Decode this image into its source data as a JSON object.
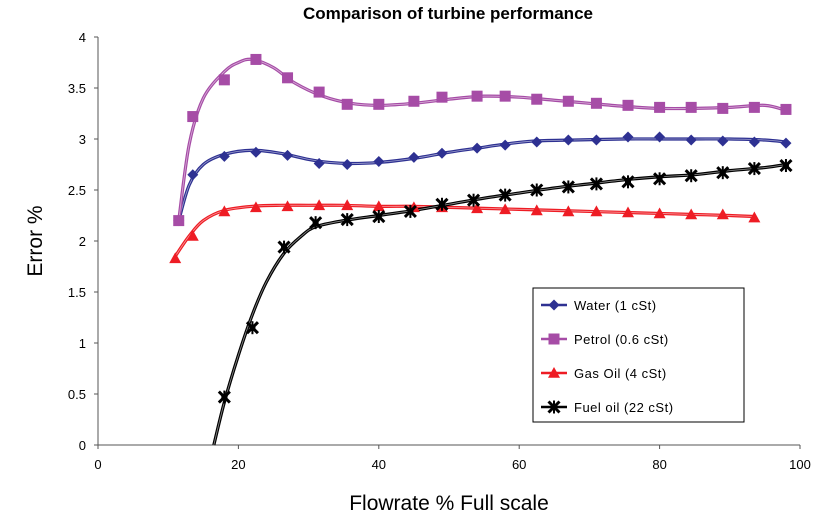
{
  "chart_data": {
    "type": "line",
    "title": "Comparison of turbine performance",
    "xlabel": "Flowrate  % Full scale",
    "ylabel": "Error  %",
    "xlim": [
      0,
      100
    ],
    "ylim": [
      0,
      4
    ],
    "x_ticks": [
      "0",
      "20",
      "40",
      "60",
      "80",
      "100"
    ],
    "y_ticks": [
      "0",
      "0.5",
      "1",
      "1.5",
      "2",
      "2.5",
      "3",
      "3.5",
      "4"
    ],
    "grid": false,
    "legend_position": "bottom-right",
    "series": [
      {
        "name": "Water   (1 cSt)",
        "color": "#2e3192",
        "marker": "diamond",
        "points": [
          [
            11.5,
            2.2
          ],
          [
            13.5,
            2.65
          ],
          [
            18,
            2.83
          ],
          [
            22.5,
            2.87
          ],
          [
            27,
            2.84
          ],
          [
            31.5,
            2.76
          ],
          [
            35.5,
            2.75
          ],
          [
            40,
            2.78
          ],
          [
            45,
            2.82
          ],
          [
            49,
            2.86
          ],
          [
            54,
            2.91
          ],
          [
            58,
            2.94
          ],
          [
            62.5,
            2.97
          ],
          [
            67,
            2.99
          ],
          [
            71,
            2.99
          ],
          [
            75.5,
            3.02
          ],
          [
            80,
            3.02
          ],
          [
            84.5,
            2.99
          ],
          [
            89,
            2.98
          ],
          [
            93.5,
            2.97
          ],
          [
            98,
            2.96
          ]
        ]
      },
      {
        "name": "Petrol   (0.6 cSt)",
        "color": "#a64ca6",
        "marker": "square",
        "points": [
          [
            11.5,
            2.2
          ],
          [
            13.5,
            3.22
          ],
          [
            18,
            3.58
          ],
          [
            22.5,
            3.78
          ],
          [
            27,
            3.6
          ],
          [
            31.5,
            3.46
          ],
          [
            35.5,
            3.34
          ],
          [
            40,
            3.34
          ],
          [
            45,
            3.37
          ],
          [
            49,
            3.41
          ],
          [
            54,
            3.42
          ],
          [
            58,
            3.42
          ],
          [
            62.5,
            3.39
          ],
          [
            67,
            3.37
          ],
          [
            71,
            3.35
          ],
          [
            75.5,
            3.33
          ],
          [
            80,
            3.31
          ],
          [
            84.5,
            3.31
          ],
          [
            89,
            3.3
          ],
          [
            93.5,
            3.31
          ],
          [
            98,
            3.29
          ]
        ]
      },
      {
        "name": "Gas Oil   (4 cSt)",
        "color": "#ee1c24",
        "marker": "triangle",
        "points": [
          [
            11,
            1.83
          ],
          [
            13.5,
            2.05
          ],
          [
            18,
            2.29
          ],
          [
            22.5,
            2.33
          ],
          [
            27,
            2.34
          ],
          [
            31.5,
            2.35
          ],
          [
            35.5,
            2.35
          ],
          [
            40,
            2.34
          ],
          [
            45,
            2.33
          ],
          [
            49,
            2.33
          ],
          [
            54,
            2.32
          ],
          [
            58,
            2.31
          ],
          [
            62.5,
            2.3
          ],
          [
            67,
            2.29
          ],
          [
            71,
            2.29
          ],
          [
            75.5,
            2.28
          ],
          [
            80,
            2.27
          ],
          [
            84.5,
            2.26
          ],
          [
            89,
            2.26
          ],
          [
            93.5,
            2.23
          ]
        ]
      },
      {
        "name": "Fuel oil (22 cSt)",
        "color": "#000000",
        "marker": "star",
        "points": [
          [
            18,
            0.47
          ],
          [
            22,
            1.15
          ],
          [
            26.5,
            1.94
          ],
          [
            31,
            2.18
          ],
          [
            35.5,
            2.21
          ],
          [
            40,
            2.24
          ],
          [
            44.5,
            2.29
          ],
          [
            49,
            2.36
          ],
          [
            53.5,
            2.4
          ],
          [
            58,
            2.45
          ],
          [
            62.5,
            2.5
          ],
          [
            67,
            2.53
          ],
          [
            71,
            2.56
          ],
          [
            75.5,
            2.58
          ],
          [
            80,
            2.61
          ],
          [
            84.5,
            2.64
          ],
          [
            89,
            2.67
          ],
          [
            93.5,
            2.71
          ],
          [
            98,
            2.74
          ]
        ]
      }
    ],
    "fit_curves": [
      {
        "series": "Water   (1 cSt)",
        "points": [
          [
            11.5,
            2.2
          ],
          [
            13,
            2.55
          ],
          [
            15,
            2.75
          ],
          [
            18,
            2.85
          ],
          [
            22,
            2.89
          ],
          [
            26,
            2.86
          ],
          [
            30,
            2.8
          ],
          [
            33,
            2.77
          ],
          [
            36,
            2.76
          ],
          [
            40,
            2.77
          ],
          [
            45,
            2.81
          ],
          [
            50,
            2.87
          ],
          [
            54,
            2.91
          ],
          [
            58,
            2.95
          ],
          [
            62,
            2.98
          ],
          [
            68,
            2.99
          ],
          [
            75,
            3.0
          ],
          [
            80,
            3.0
          ],
          [
            85,
            3.0
          ],
          [
            90,
            3.0
          ],
          [
            95,
            2.99
          ],
          [
            98,
            2.97
          ]
        ]
      },
      {
        "series": "Petrol   (0.6 cSt)",
        "points": [
          [
            11.5,
            2.2
          ],
          [
            13,
            2.95
          ],
          [
            15,
            3.4
          ],
          [
            18,
            3.66
          ],
          [
            20,
            3.75
          ],
          [
            22,
            3.78
          ],
          [
            25,
            3.7
          ],
          [
            28,
            3.55
          ],
          [
            32,
            3.42
          ],
          [
            36,
            3.35
          ],
          [
            40,
            3.33
          ],
          [
            45,
            3.35
          ],
          [
            50,
            3.39
          ],
          [
            55,
            3.42
          ],
          [
            60,
            3.41
          ],
          [
            65,
            3.38
          ],
          [
            70,
            3.35
          ],
          [
            75,
            3.32
          ],
          [
            80,
            3.3
          ],
          [
            85,
            3.3
          ],
          [
            90,
            3.31
          ],
          [
            95,
            3.33
          ],
          [
            98,
            3.28
          ]
        ]
      },
      {
        "series": "Gas Oil   (4 cSt)",
        "points": [
          [
            11,
            1.85
          ],
          [
            13,
            2.05
          ],
          [
            15,
            2.2
          ],
          [
            18,
            2.3
          ],
          [
            22,
            2.34
          ],
          [
            26,
            2.35
          ],
          [
            30,
            2.35
          ],
          [
            35,
            2.35
          ],
          [
            40,
            2.34
          ],
          [
            45,
            2.34
          ],
          [
            50,
            2.33
          ],
          [
            55,
            2.32
          ],
          [
            60,
            2.31
          ],
          [
            65,
            2.3
          ],
          [
            70,
            2.29
          ],
          [
            75,
            2.28
          ],
          [
            80,
            2.27
          ],
          [
            85,
            2.26
          ],
          [
            90,
            2.25
          ],
          [
            93.5,
            2.24
          ]
        ]
      },
      {
        "series": "Fuel oil (22 cSt)",
        "points": [
          [
            16.5,
            0.0
          ],
          [
            18,
            0.42
          ],
          [
            20,
            0.88
          ],
          [
            22,
            1.28
          ],
          [
            24,
            1.6
          ],
          [
            26.5,
            1.88
          ],
          [
            29,
            2.05
          ],
          [
            31,
            2.14
          ],
          [
            35,
            2.2
          ],
          [
            40,
            2.25
          ],
          [
            45,
            2.3
          ],
          [
            50,
            2.36
          ],
          [
            55,
            2.42
          ],
          [
            60,
            2.47
          ],
          [
            65,
            2.52
          ],
          [
            70,
            2.56
          ],
          [
            75,
            2.6
          ],
          [
            80,
            2.63
          ],
          [
            85,
            2.65
          ],
          [
            90,
            2.69
          ],
          [
            95,
            2.72
          ],
          [
            98,
            2.75
          ]
        ]
      }
    ]
  }
}
